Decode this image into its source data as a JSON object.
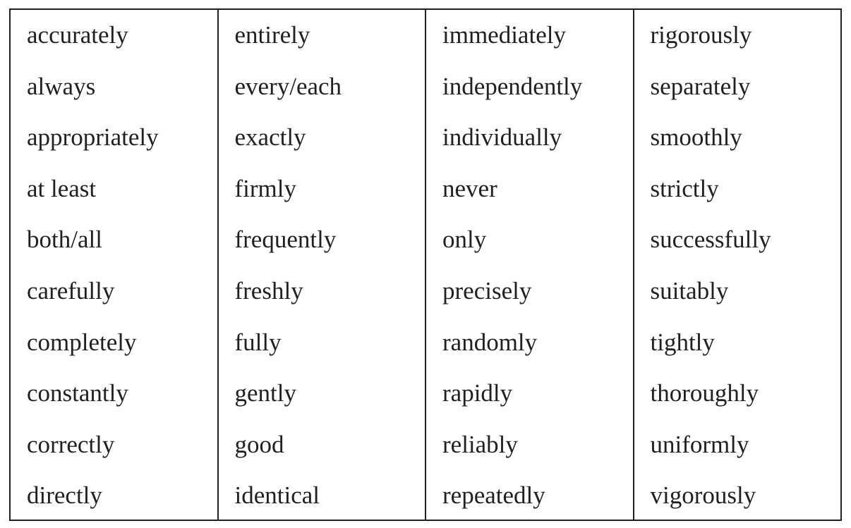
{
  "table": {
    "columns": [
      [
        "accurately",
        "always",
        "appropriately",
        "at least",
        "both/all",
        "carefully",
        "completely",
        "constantly",
        "correctly",
        "directly"
      ],
      [
        "entirely",
        "every/each",
        "exactly",
        "firmly",
        "frequently",
        "freshly",
        "fully",
        "gently",
        "good",
        "identical"
      ],
      [
        "immediately",
        "independently",
        "individually",
        "never",
        "only",
        "precisely",
        "randomly",
        "rapidly",
        "reliably",
        "repeatedly"
      ],
      [
        "rigorously",
        "separately",
        "smoothly",
        "strictly",
        "successfully",
        "suitably",
        "tightly",
        "thoroughly",
        "uniformly",
        "vigorously"
      ]
    ]
  }
}
